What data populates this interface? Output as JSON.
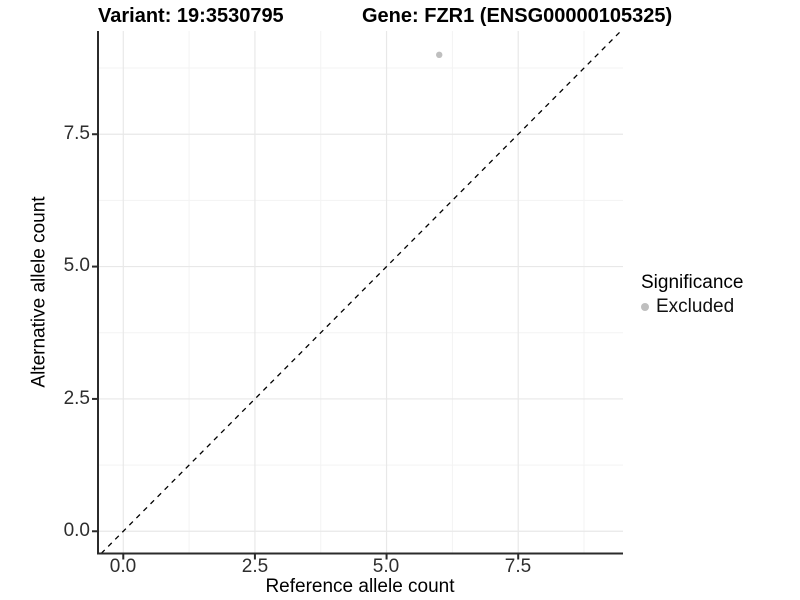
{
  "chart_data": {
    "type": "scatter",
    "title_left": "Variant: 19:3530795",
    "title_right": "Gene: FZR1 (ENSG00000105325)",
    "xlabel": "Reference allele count",
    "ylabel": "Alternative allele count",
    "xlim": [
      -0.48,
      9.49
    ],
    "ylim": [
      -0.42,
      9.45
    ],
    "x_ticks": {
      "values": [
        0,
        2.5,
        5,
        7.5
      ],
      "labels": [
        "0.0",
        "2.5",
        "5.0",
        "7.5"
      ]
    },
    "y_ticks": {
      "values": [
        0,
        2.5,
        5,
        7.5
      ],
      "labels": [
        "0.0",
        "2.5",
        "5.0",
        "7.5"
      ]
    },
    "x_minor_ticks": [
      1.25,
      3.75,
      6.25,
      8.75
    ],
    "y_minor_ticks": [
      1.25,
      3.75,
      6.25,
      8.75
    ],
    "grid": {
      "shown": true,
      "major_color": "#e8e8e8",
      "minor_color": "#f3f3f3"
    },
    "identity_line": {
      "slope": 1,
      "intercept": 0,
      "style": "dashed",
      "color": "#000000"
    },
    "points": [
      {
        "x": 6,
        "y": 9,
        "significance": "Excluded",
        "color": "#bfbfbf",
        "radius": 3.2
      }
    ],
    "legend": {
      "title": "Significance",
      "position": "right",
      "items": [
        {
          "label": "Excluded",
          "color": "#bfbfbf",
          "marker": "circle"
        }
      ]
    },
    "axis_color": "#2b2b2b",
    "tick_label_color": "#2e2e2e"
  }
}
